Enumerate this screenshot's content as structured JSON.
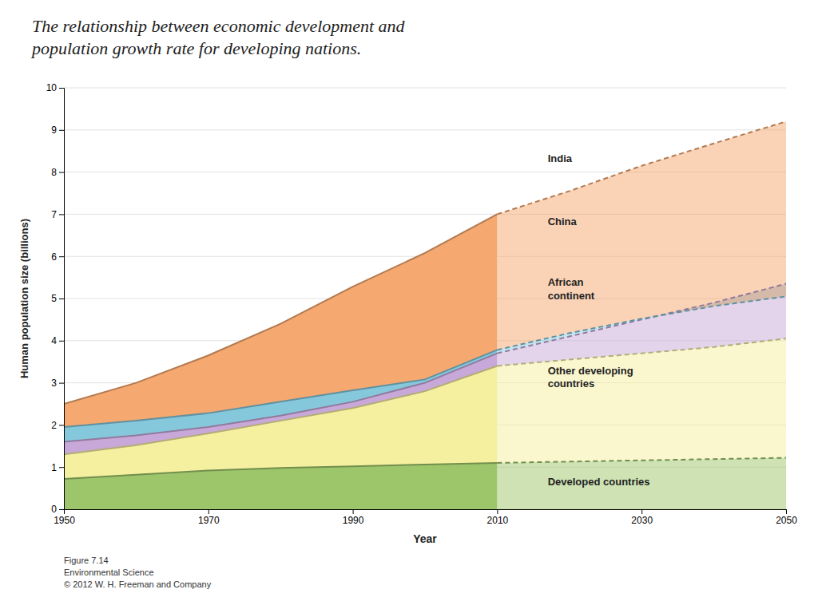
{
  "chart_data": {
    "type": "area",
    "title": "The relationship between economic development and\npopulation growth rate for developing nations.",
    "x_label": "Year",
    "y_label": "Human population size (billions)",
    "caption": "Figure 7.14\nEnvironmental Science\n© 2012 W. H. Freeman and Company",
    "x": [
      1950,
      1960,
      1970,
      1980,
      1990,
      2000,
      2010
    ],
    "x_projected": [
      2010,
      2020,
      2030,
      2040,
      2050
    ],
    "label_x": 2017,
    "series": [
      {
        "name": "Developed countries",
        "color": "#9DC56A",
        "values": [
          0.72,
          0.82,
          0.92,
          0.98,
          1.02,
          1.06,
          1.1
        ],
        "projected_values": [
          1.1,
          1.13,
          1.16,
          1.19,
          1.22
        ],
        "label_y": 0.62
      },
      {
        "name": "Other developing\ncountries",
        "color": "#F5EFA0",
        "values": [
          1.3,
          1.52,
          1.8,
          2.1,
          2.4,
          2.8,
          3.4
        ],
        "projected_values": [
          3.4,
          3.55,
          3.7,
          3.85,
          4.05
        ],
        "label_y": 3.1
      },
      {
        "name": "African\ncontinent",
        "color": "#C8A8D8",
        "values": [
          1.6,
          1.75,
          1.95,
          2.22,
          2.55,
          3.0,
          3.7
        ],
        "projected_values": [
          3.7,
          4.1,
          4.5,
          4.9,
          5.35
        ],
        "label_y": 5.2
      },
      {
        "name": "China",
        "color": "#85C8DC",
        "values": [
          1.95,
          2.1,
          2.28,
          2.55,
          2.82,
          3.08,
          3.78
        ],
        "projected_values": [
          3.78,
          4.18,
          4.52,
          4.82,
          5.05
        ],
        "label_y": 6.8
      },
      {
        "name": "India",
        "color": "#F5A870",
        "values": [
          2.5,
          3.0,
          3.65,
          4.4,
          5.28,
          6.08,
          7.0
        ],
        "projected_values": [
          7.0,
          7.55,
          8.15,
          8.68,
          9.2
        ],
        "label_y": 8.3
      }
    ],
    "xlim": [
      1950,
      2050
    ],
    "ylim": [
      0,
      10
    ],
    "xticks": [
      1950,
      1970,
      1990,
      2010,
      2030,
      2050
    ],
    "yticks": [
      0,
      1,
      2,
      3,
      4,
      5,
      6,
      7,
      8,
      9,
      10
    ],
    "grid": "y"
  }
}
